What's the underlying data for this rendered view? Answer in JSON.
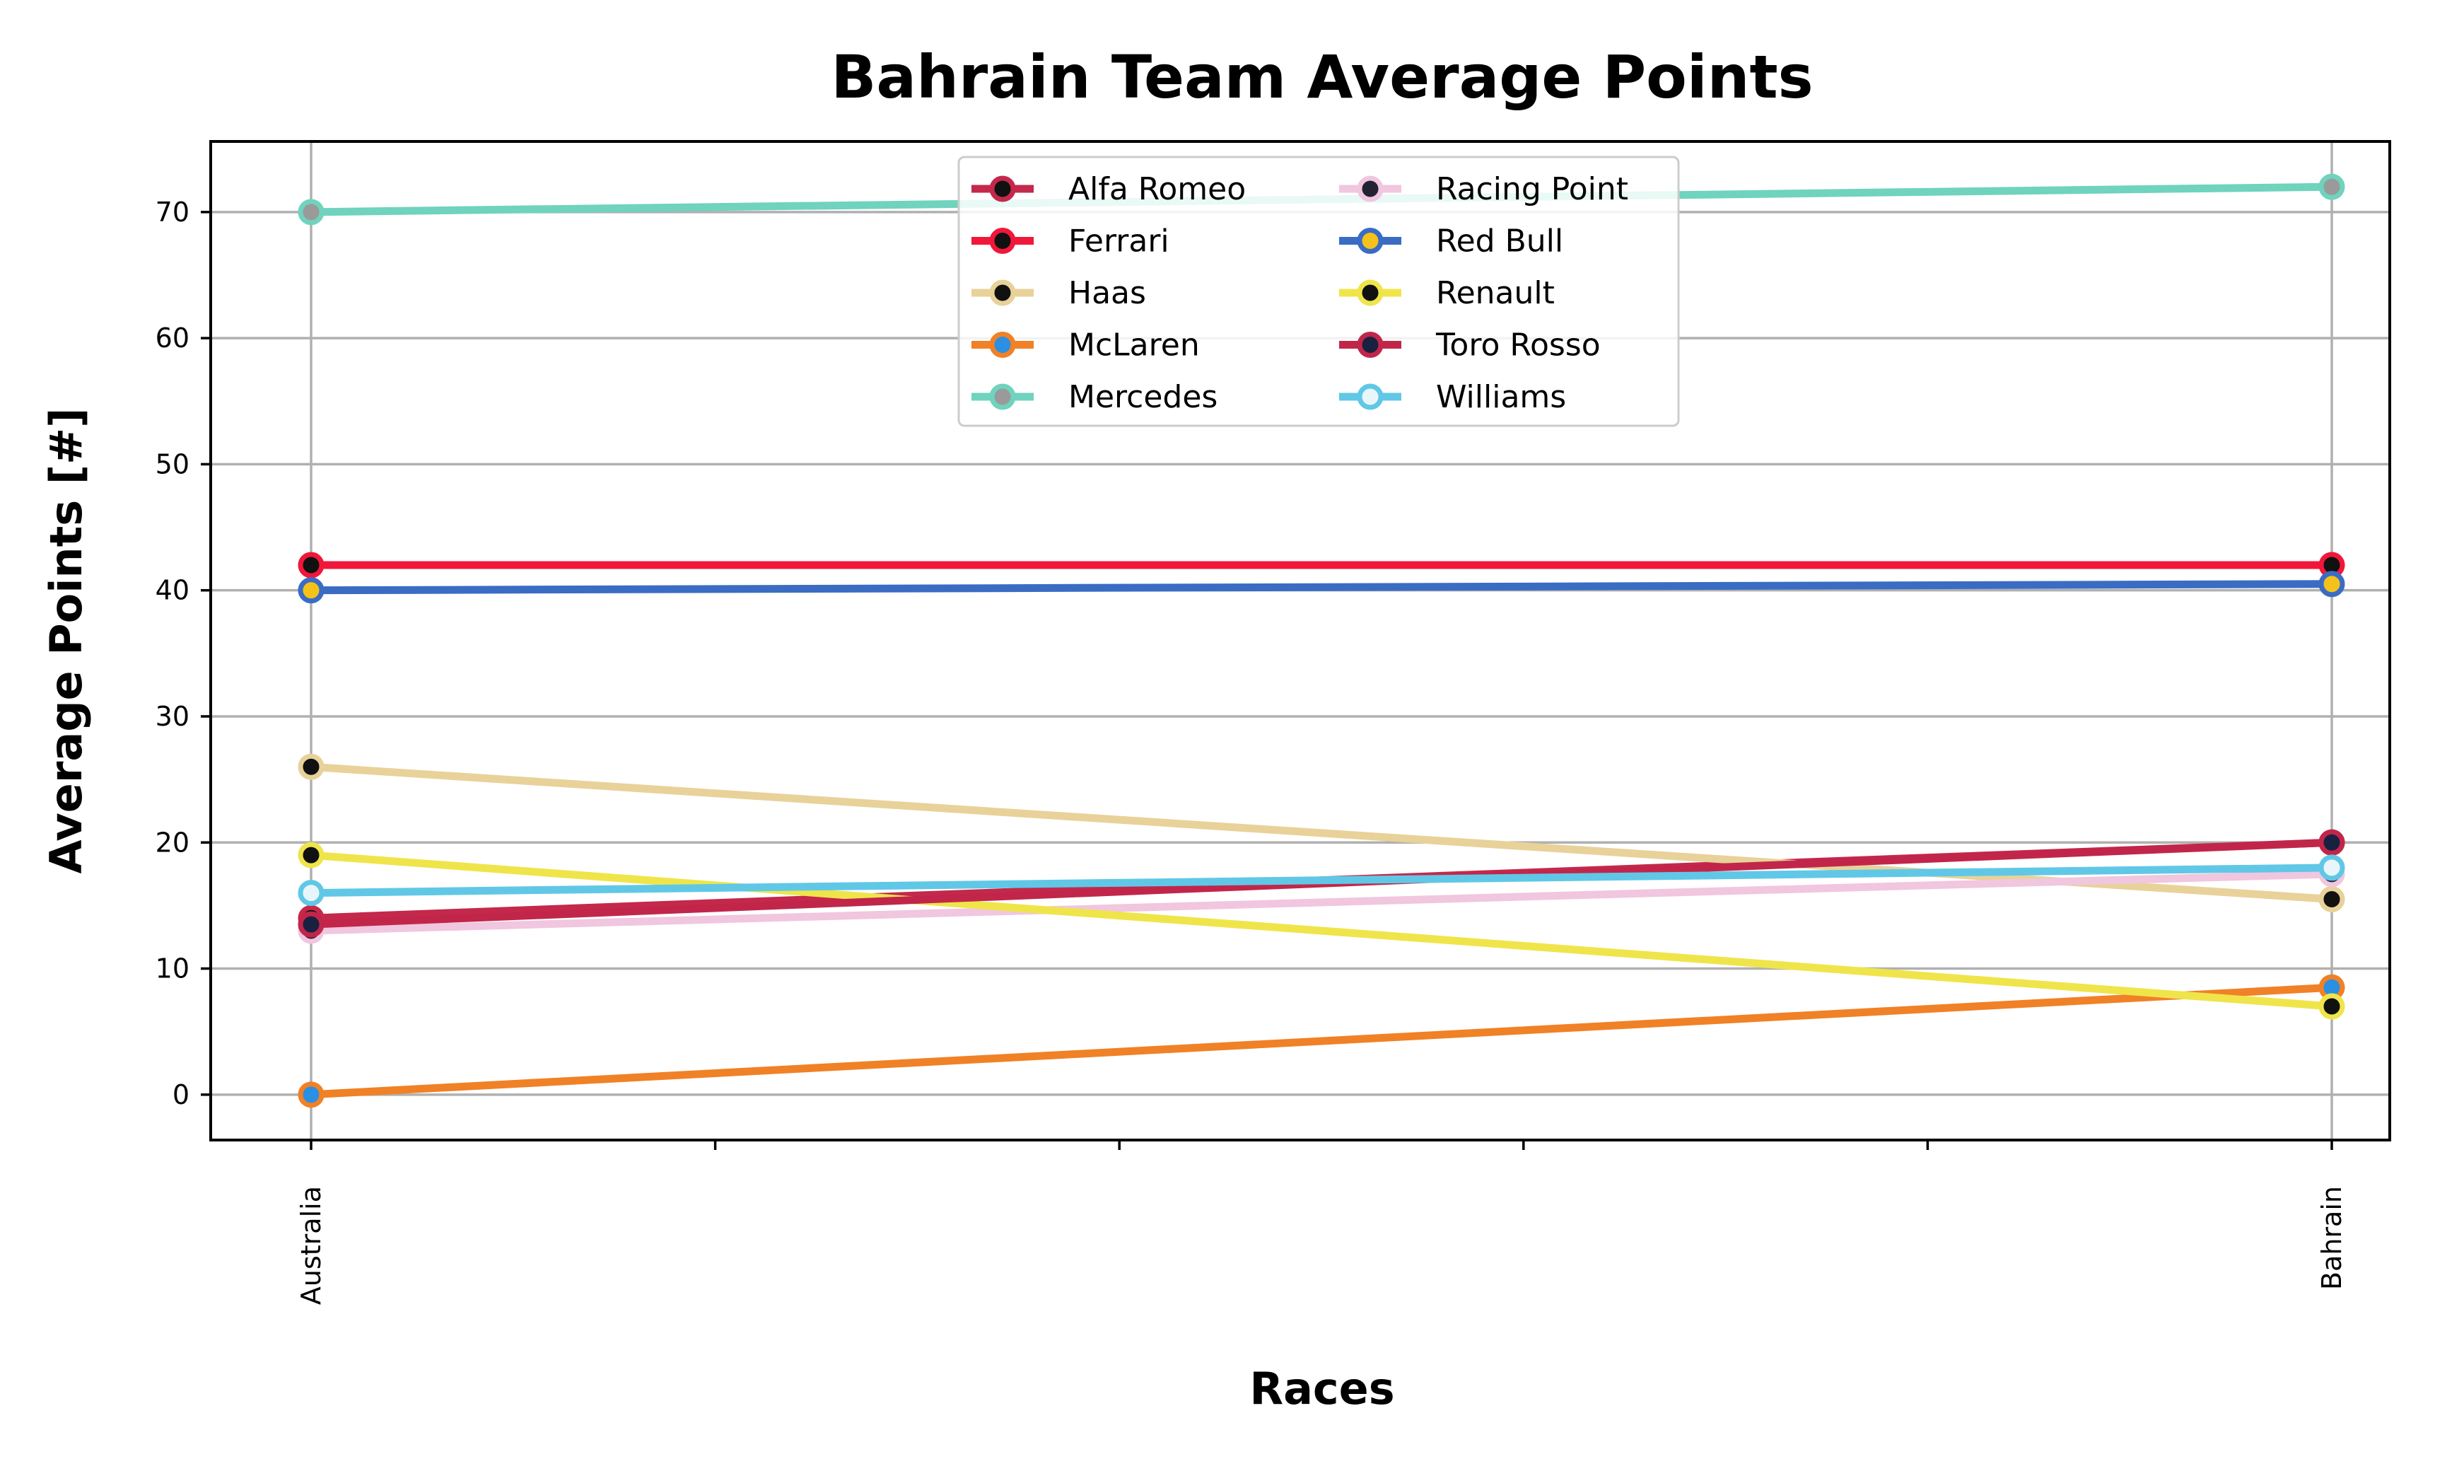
{
  "chart_data": {
    "type": "line",
    "title": "Bahrain Team Average Points",
    "xlabel": "Races",
    "ylabel": "Average Points [#]",
    "categories": [
      "Australia",
      "Bahrain"
    ],
    "ylim": [
      -3.6,
      75.6
    ],
    "yticks": [
      0,
      10,
      20,
      30,
      40,
      50,
      60,
      70
    ],
    "grid": true,
    "legend_placement": "top-center",
    "legend_columns": 2,
    "series": [
      {
        "name": "Alfa Romeo",
        "values": [
          14,
          20
        ],
        "color": "#c4284b",
        "marker_face": "#111111",
        "marker_edge": "#c4284b"
      },
      {
        "name": "Ferrari",
        "values": [
          42,
          42
        ],
        "color": "#f1173a",
        "marker_face": "#111111",
        "marker_edge": "#f1173a"
      },
      {
        "name": "Haas",
        "values": [
          26,
          15.5
        ],
        "color": "#e8d29a",
        "marker_face": "#111111",
        "marker_edge": "#e8d29a"
      },
      {
        "name": "McLaren",
        "values": [
          0,
          8.5
        ],
        "color": "#f08126",
        "marker_face": "#2b8fe3",
        "marker_edge": "#f08126"
      },
      {
        "name": "Mercedes",
        "values": [
          70,
          72
        ],
        "color": "#6fd3bd",
        "marker_face": "#9a9a9a",
        "marker_edge": "#6fd3bd"
      },
      {
        "name": "Racing Point",
        "values": [
          13,
          17.5
        ],
        "color": "#f1c6df",
        "marker_face": "#222233",
        "marker_edge": "#f1c6df"
      },
      {
        "name": "Red Bull",
        "values": [
          40,
          40.5
        ],
        "color": "#3a6cc4",
        "marker_face": "#f5c21b",
        "marker_edge": "#3a6cc4"
      },
      {
        "name": "Renault",
        "values": [
          19,
          7
        ],
        "color": "#efe54a",
        "marker_face": "#111111",
        "marker_edge": "#efe54a"
      },
      {
        "name": "Toro Rosso",
        "values": [
          13.5,
          20
        ],
        "color": "#c1264a",
        "marker_face": "#1a2040",
        "marker_edge": "#c1264a"
      },
      {
        "name": "Williams",
        "values": [
          16,
          18
        ],
        "color": "#60c8e6",
        "marker_face": "#e8f6fb",
        "marker_edge": "#60c8e6"
      }
    ]
  }
}
